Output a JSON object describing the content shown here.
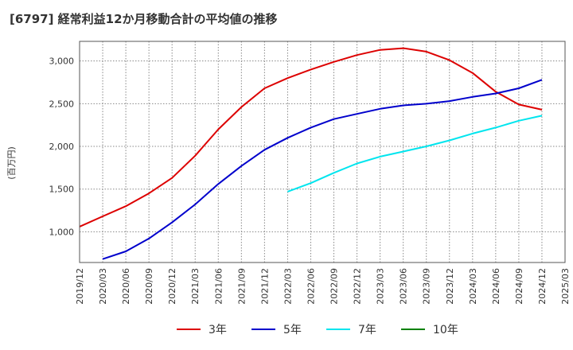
{
  "title": "[6797]  経常利益12か月移動合計の平均値の推移",
  "chart_data": {
    "type": "line",
    "title": "[6797]  経常利益12か月移動合計の平均値の推移",
    "ylabel": "(百万円)",
    "xlabel": "",
    "x_ticks": [
      "2019/12",
      "2020/03",
      "2020/06",
      "2020/09",
      "2020/12",
      "2021/03",
      "2021/06",
      "2021/09",
      "2021/12",
      "2022/03",
      "2022/06",
      "2022/09",
      "2022/12",
      "2023/03",
      "2023/06",
      "2023/09",
      "2023/12",
      "2024/03",
      "2024/06",
      "2024/09",
      "2024/12",
      "2025/03"
    ],
    "y_ticks": [
      1000,
      1500,
      2000,
      2500,
      3000
    ],
    "y_tick_labels": [
      "1,000",
      "1,500",
      "2,000",
      "2,500",
      "3,000"
    ],
    "ylim": [
      640,
      3230
    ],
    "grid": true,
    "legend_position": "bottom",
    "series": [
      {
        "name": "3年",
        "color": "#dd0000",
        "points": [
          [
            "2019/12",
            1060
          ],
          [
            "2020/03",
            1180
          ],
          [
            "2020/06",
            1300
          ],
          [
            "2020/09",
            1450
          ],
          [
            "2020/12",
            1630
          ],
          [
            "2021/03",
            1890
          ],
          [
            "2021/06",
            2200
          ],
          [
            "2021/09",
            2460
          ],
          [
            "2021/12",
            2680
          ],
          [
            "2022/03",
            2800
          ],
          [
            "2022/06",
            2900
          ],
          [
            "2022/09",
            2990
          ],
          [
            "2022/12",
            3070
          ],
          [
            "2023/03",
            3130
          ],
          [
            "2023/06",
            3150
          ],
          [
            "2023/09",
            3110
          ],
          [
            "2023/12",
            3010
          ],
          [
            "2024/03",
            2860
          ],
          [
            "2024/06",
            2640
          ],
          [
            "2024/09",
            2490
          ],
          [
            "2024/12",
            2430
          ]
        ]
      },
      {
        "name": "5年",
        "color": "#0000cc",
        "points": [
          [
            "2020/03",
            680
          ],
          [
            "2020/06",
            770
          ],
          [
            "2020/09",
            920
          ],
          [
            "2020/12",
            1110
          ],
          [
            "2021/03",
            1320
          ],
          [
            "2021/06",
            1560
          ],
          [
            "2021/09",
            1770
          ],
          [
            "2021/12",
            1960
          ],
          [
            "2022/03",
            2100
          ],
          [
            "2022/06",
            2220
          ],
          [
            "2022/09",
            2320
          ],
          [
            "2022/12",
            2380
          ],
          [
            "2023/03",
            2440
          ],
          [
            "2023/06",
            2480
          ],
          [
            "2023/09",
            2500
          ],
          [
            "2023/12",
            2530
          ],
          [
            "2024/03",
            2580
          ],
          [
            "2024/06",
            2620
          ],
          [
            "2024/09",
            2680
          ],
          [
            "2024/12",
            2780
          ]
        ]
      },
      {
        "name": "7年",
        "color": "#00e5ee",
        "points": [
          [
            "2022/03",
            1470
          ],
          [
            "2022/06",
            1570
          ],
          [
            "2022/09",
            1690
          ],
          [
            "2022/12",
            1800
          ],
          [
            "2023/03",
            1880
          ],
          [
            "2023/06",
            1940
          ],
          [
            "2023/09",
            2000
          ],
          [
            "2023/12",
            2070
          ],
          [
            "2024/03",
            2150
          ],
          [
            "2024/06",
            2220
          ],
          [
            "2024/09",
            2300
          ],
          [
            "2024/12",
            2360
          ]
        ]
      },
      {
        "name": "10年",
        "color": "#008000",
        "points": []
      }
    ]
  }
}
